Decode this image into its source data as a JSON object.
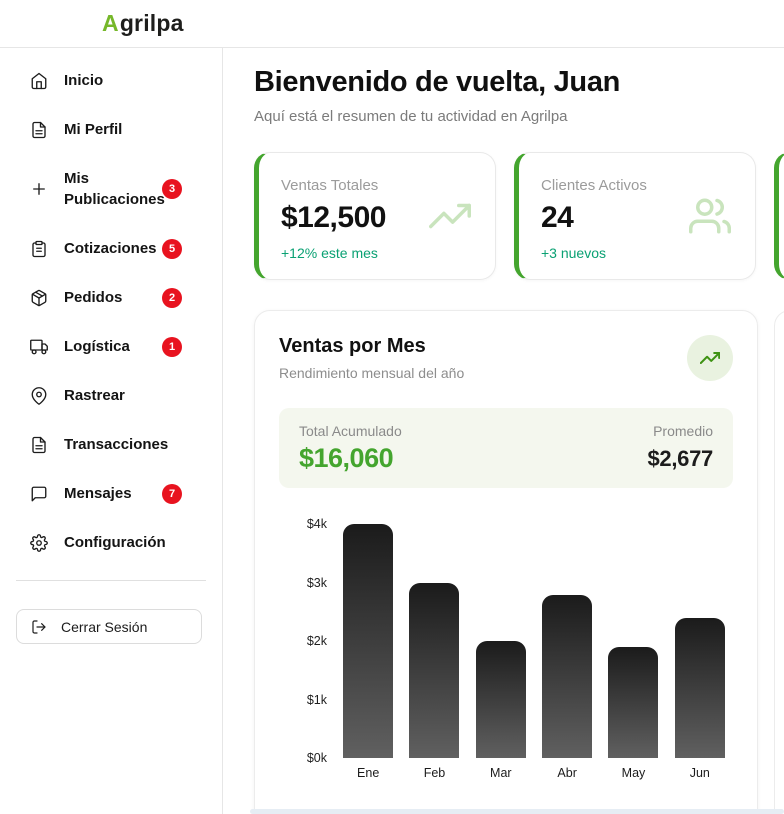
{
  "header": {
    "logo_accent": "A",
    "logo_rest": "grilpa"
  },
  "sidebar": {
    "items": [
      {
        "label": "Inicio",
        "icon": "home-icon",
        "badge": null
      },
      {
        "label": "Mi Perfil",
        "icon": "file-text-icon",
        "badge": null
      },
      {
        "label": "Mis Publicaciones",
        "icon": "plus-icon",
        "badge": "3"
      },
      {
        "label": "Cotizaciones",
        "icon": "clipboard-icon",
        "badge": "5"
      },
      {
        "label": "Pedidos",
        "icon": "package-icon",
        "badge": "2"
      },
      {
        "label": "Logística",
        "icon": "truck-icon",
        "badge": "1"
      },
      {
        "label": "Rastrear",
        "icon": "map-pin-icon",
        "badge": null
      },
      {
        "label": "Transacciones",
        "icon": "file-text-icon",
        "badge": null
      },
      {
        "label": "Mensajes",
        "icon": "chat-icon",
        "badge": "7"
      },
      {
        "label": "Configuración",
        "icon": "gear-icon",
        "badge": null
      }
    ],
    "logout_label": "Cerrar Sesión"
  },
  "main": {
    "title": "Bienvenido de vuelta, Juan",
    "subtitle": "Aquí está el resumen de tu actividad en Agrilpa",
    "stats": [
      {
        "label": "Ventas Totales",
        "value": "$12,500",
        "sub": "+12% este mes",
        "icon": "trending-up-icon"
      },
      {
        "label": "Clientes Activos",
        "value": "24",
        "sub": "+3 nuevos",
        "icon": "users-icon"
      }
    ],
    "chart_card": {
      "title": "Ventas por Mes",
      "subtitle": "Rendimiento mensual del año",
      "total_label": "Total Acumulado",
      "total_value": "$16,060",
      "avg_label": "Promedio",
      "avg_value": "$2,677"
    }
  },
  "chart_data": {
    "type": "bar",
    "title": "Ventas por Mes",
    "categories": [
      "Ene",
      "Feb",
      "Mar",
      "Abr",
      "May",
      "Jun"
    ],
    "values": [
      4000,
      3000,
      2000,
      2780,
      1890,
      2390
    ],
    "xlabel": "",
    "ylabel": "",
    "ylim": [
      0,
      4000
    ],
    "ytick_values": [
      0,
      1000,
      2000,
      3000,
      4000
    ],
    "ytick_labels": [
      "$0k",
      "$1k",
      "$2k",
      "$3k",
      "$4k"
    ],
    "grid": false,
    "legend": false,
    "bar_style": "dark vertical gradient, rounded top corners"
  },
  "colors": {
    "logo_green": "#76b82a",
    "accent_green": "#44a52e",
    "badge_green": "#3f9314",
    "badge_red": "#e8131f",
    "sub_green": "#0aa173",
    "summary_bg": "#f4f7ee",
    "icon_light_green": "#c9e4bd",
    "bar_top": "#1b1b1b",
    "bar_bottom": "#606060"
  }
}
